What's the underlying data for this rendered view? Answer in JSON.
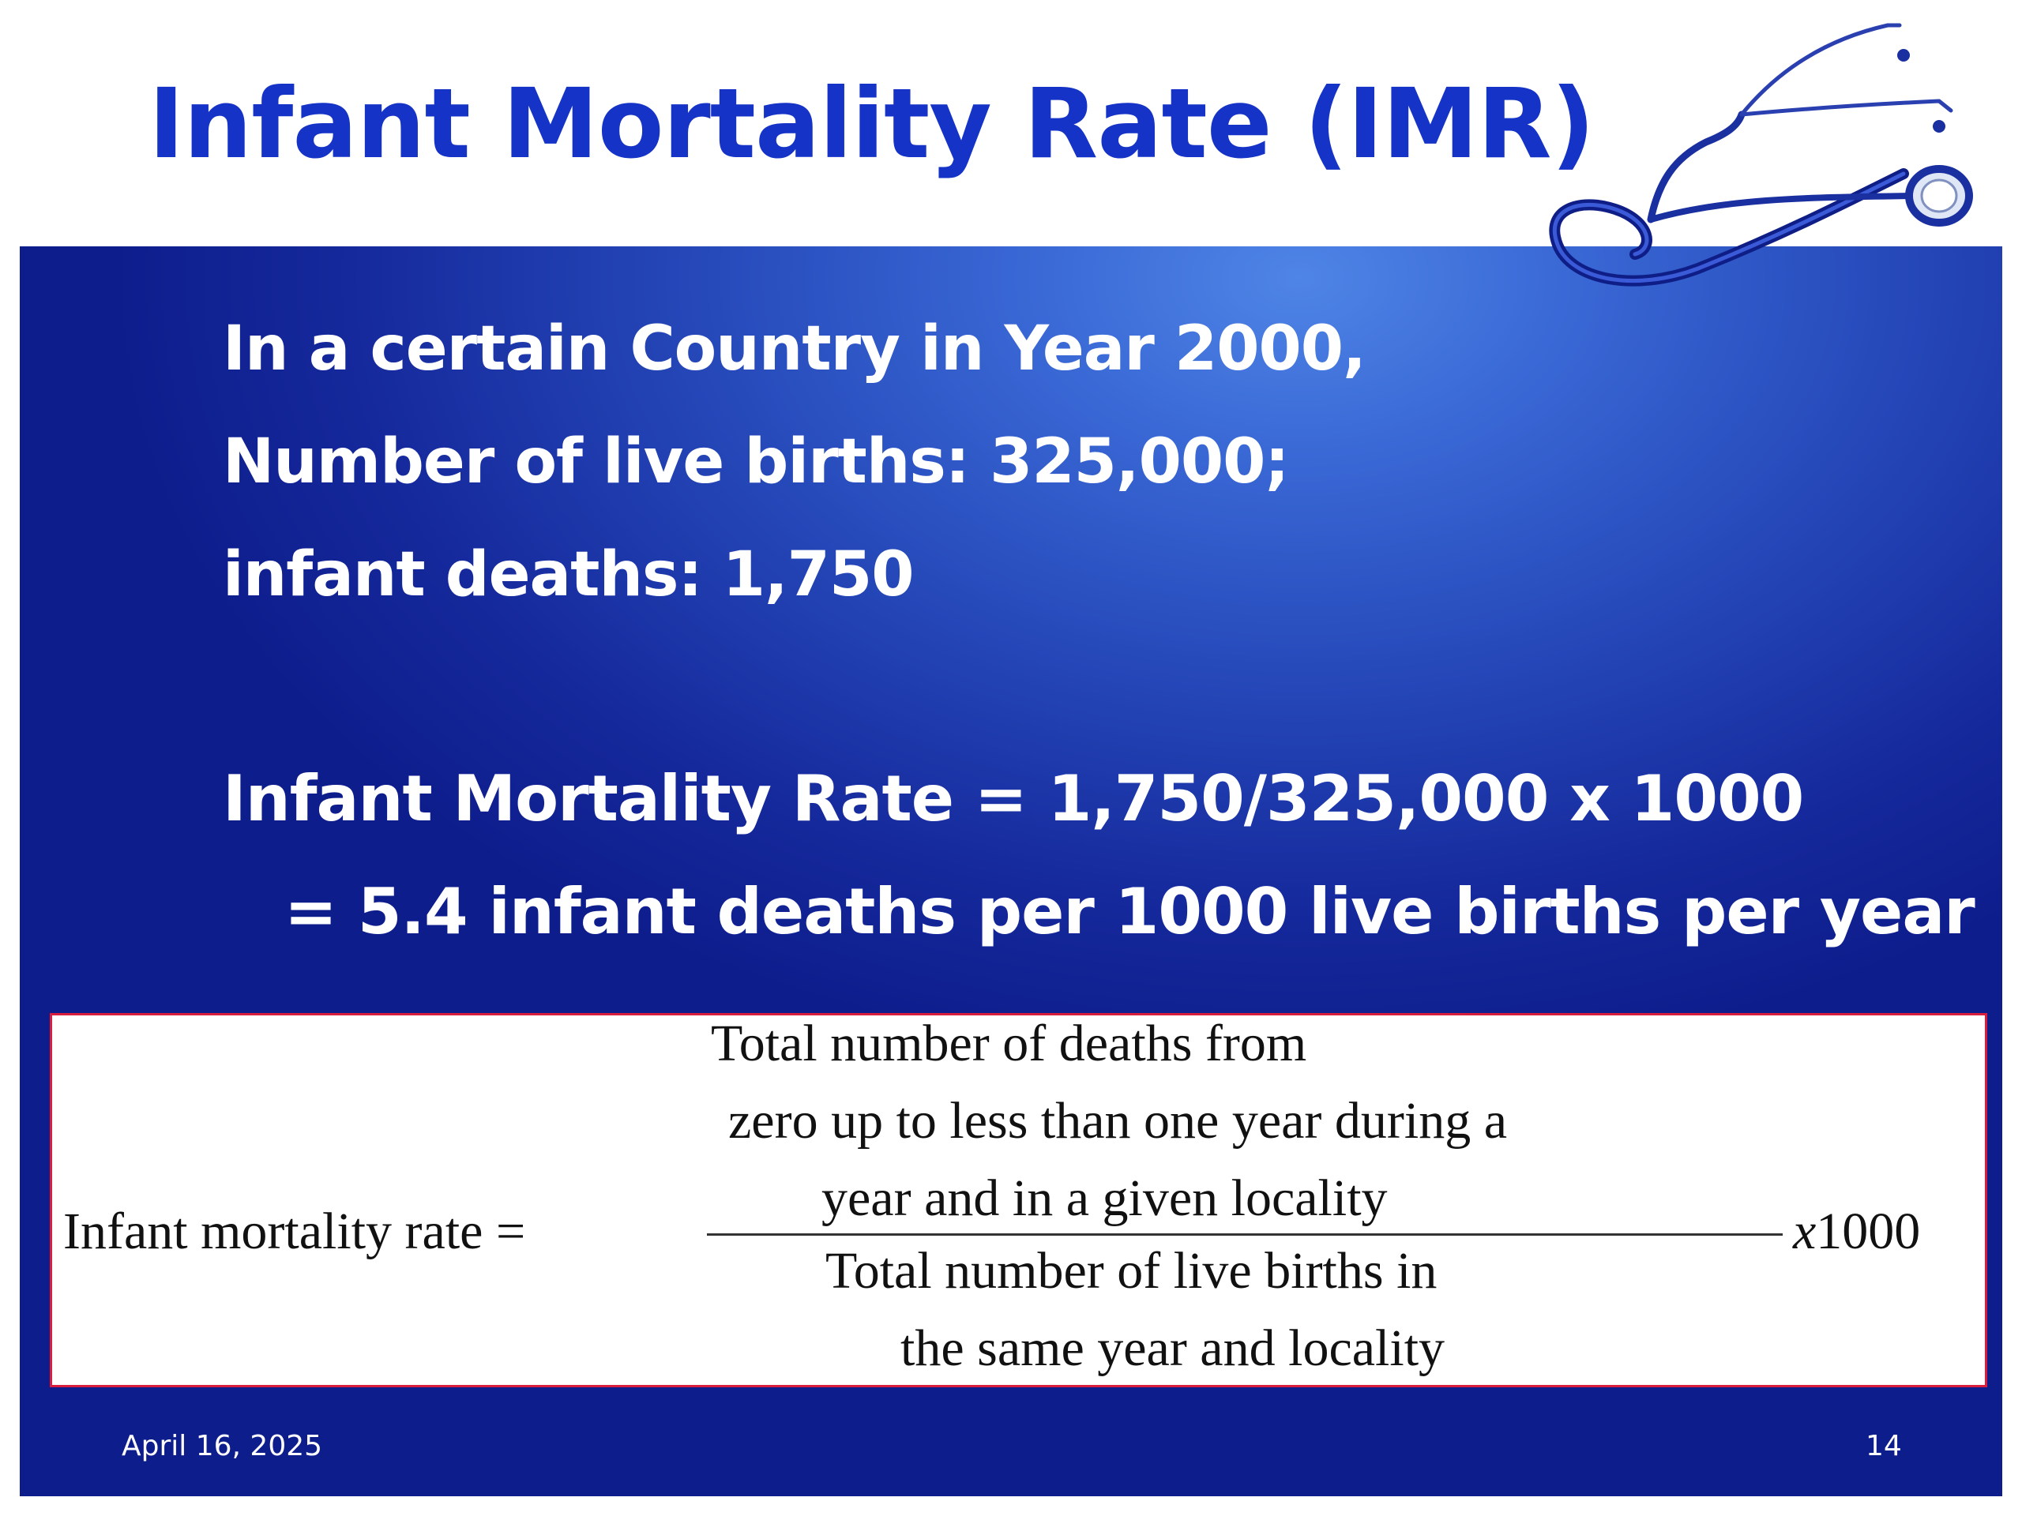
{
  "slide": {
    "title": "Infant Mortality Rate (IMR)",
    "lines": [
      "In a certain Country in Year 2000,",
      "Number of live births: 325,000;",
      "infant deaths: 1,750"
    ],
    "calculation": "Infant Mortality Rate = 1,750/325,000 x 1000",
    "result": "= 5.4 infant deaths per 1000 live births per year"
  },
  "formula": {
    "lhs": "Infant mortality rate =",
    "numerator": [
      "Total number of deaths from",
      "zero up to less than one year during a",
      "year and in a given locality"
    ],
    "denominator": [
      "Total number of live births in",
      "the same year and locality"
    ],
    "multiplier_symbol": "x",
    "multiplier_value": "1000"
  },
  "footer": {
    "date": "April 16, 2025",
    "page": "14"
  },
  "colors": {
    "title": "#1533c6",
    "panel": "#15299c",
    "panel_highlight": "#4f85e6",
    "formula_border": "#d81e3c",
    "stethoscope": "#1a2fa0"
  }
}
